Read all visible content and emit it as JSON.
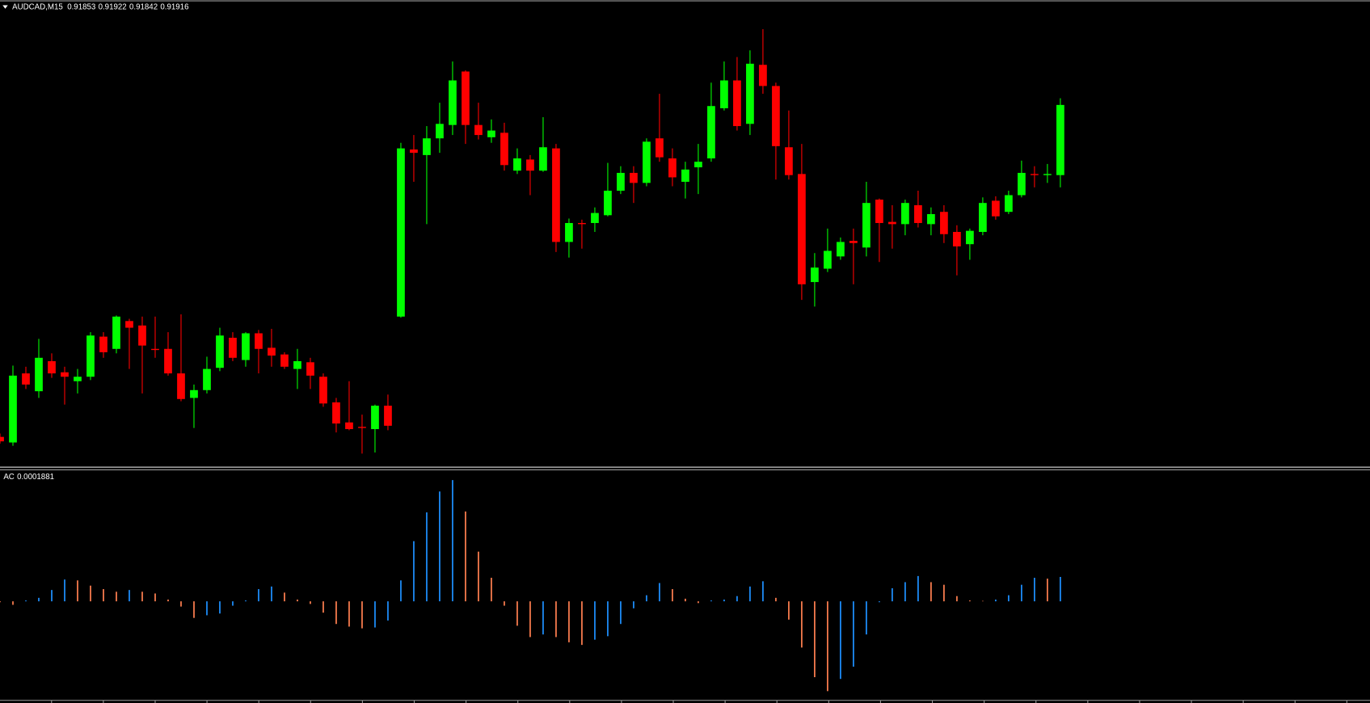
{
  "chart_data": [
    {
      "type": "candlestick",
      "title": "AUDCAD,M15",
      "color_up": "#00ff00",
      "color_down": "#ff0000",
      "ylim": [
        0.9159,
        0.92
      ],
      "open": [
        0.91618,
        0.91613,
        0.91675,
        0.91659,
        0.91686,
        0.91676,
        0.91668,
        0.91672,
        0.91708,
        0.91697,
        0.91722,
        0.91718,
        0.91697,
        0.91697,
        0.91675,
        0.91653,
        0.9166,
        0.9168,
        0.91707,
        0.91687,
        0.91711,
        0.91698,
        0.91692,
        0.91679,
        0.91685,
        0.91672,
        0.91649,
        0.91631,
        0.91627,
        0.91625,
        0.91646,
        0.91726,
        0.91876,
        0.91871,
        0.91886,
        0.91898,
        0.91946,
        0.91898,
        0.91887,
        0.91891,
        0.91857,
        0.91867,
        0.91857,
        0.91877,
        0.91793,
        0.9181,
        0.9181,
        0.91817,
        0.91839,
        0.91855,
        0.91846,
        0.91886,
        0.91868,
        0.91847,
        0.9186,
        0.91868,
        0.91913,
        0.91938,
        0.91899,
        0.91952,
        0.91933,
        0.91878,
        0.91854,
        0.91757,
        0.91769,
        0.9178,
        0.91794,
        0.91788,
        0.91831,
        0.91811,
        0.91809,
        0.91826,
        0.91809,
        0.9182,
        0.91802,
        0.91791,
        0.91802,
        0.9183,
        0.9182,
        0.91835,
        0.91854,
        0.91853,
        0.91853
      ],
      "high": [
        0.91621,
        0.91682,
        0.91681,
        0.91706,
        0.91693,
        0.91681,
        0.91679,
        0.91712,
        0.91712,
        0.91727,
        0.91724,
        0.91726,
        0.91726,
        0.91712,
        0.91728,
        0.91665,
        0.9169,
        0.91716,
        0.91712,
        0.91712,
        0.91714,
        0.91715,
        0.91694,
        0.91697,
        0.91689,
        0.91675,
        0.91653,
        0.91668,
        0.91638,
        0.91647,
        0.91656,
        0.91882,
        0.91889,
        0.91897,
        0.91918,
        0.91955,
        0.91947,
        0.91918,
        0.91903,
        0.919,
        0.91877,
        0.91871,
        0.91905,
        0.91881,
        0.91814,
        0.91813,
        0.91824,
        0.91864,
        0.91861,
        0.91861,
        0.91886,
        0.91926,
        0.91877,
        0.91865,
        0.91881,
        0.91936,
        0.91955,
        0.91959,
        0.91965,
        0.91984,
        0.91936,
        0.91911,
        0.91881,
        0.91783,
        0.91805,
        0.91797,
        0.91805,
        0.91847,
        0.91832,
        0.91826,
        0.91831,
        0.91839,
        0.91824,
        0.91826,
        0.91808,
        0.91805,
        0.91833,
        0.91834,
        0.91839,
        0.91866,
        0.91861,
        0.91863,
        0.91922
      ],
      "low": [
        0.91612,
        0.9161,
        0.91661,
        0.91653,
        0.91671,
        0.91647,
        0.91657,
        0.91669,
        0.91689,
        0.91693,
        0.91679,
        0.91657,
        0.91689,
        0.91673,
        0.9165,
        0.91626,
        0.91657,
        0.91677,
        0.91686,
        0.91681,
        0.91675,
        0.91681,
        0.91679,
        0.91661,
        0.91661,
        0.91645,
        0.91622,
        0.91624,
        0.91603,
        0.91604,
        0.91624,
        0.91725,
        0.91847,
        0.91809,
        0.91873,
        0.91889,
        0.91881,
        0.91885,
        0.91882,
        0.91857,
        0.91854,
        0.91835,
        0.91856,
        0.91784,
        0.91779,
        0.91787,
        0.91802,
        0.91816,
        0.91836,
        0.91828,
        0.91843,
        0.91865,
        0.91843,
        0.91832,
        0.91836,
        0.91865,
        0.91911,
        0.91893,
        0.91889,
        0.91926,
        0.91849,
        0.91849,
        0.91741,
        0.91735,
        0.91766,
        0.91777,
        0.91755,
        0.9178,
        0.91775,
        0.91787,
        0.91799,
        0.91806,
        0.91799,
        0.91792,
        0.91763,
        0.91777,
        0.91799,
        0.91813,
        0.91818,
        0.91833,
        0.91842,
        0.91846,
        0.91842
      ],
      "close": [
        0.91614,
        0.91673,
        0.91665,
        0.91689,
        0.91675,
        0.91672,
        0.91672,
        0.91709,
        0.91694,
        0.91726,
        0.91716,
        0.917,
        0.91696,
        0.91675,
        0.91652,
        0.9166,
        0.91679,
        0.91709,
        0.91689,
        0.91711,
        0.91697,
        0.91691,
        0.91681,
        0.91686,
        0.91673,
        0.91648,
        0.9163,
        0.91625,
        0.91626,
        0.91646,
        0.91628,
        0.91877,
        0.91873,
        0.91886,
        0.91899,
        0.91938,
        0.91898,
        0.91889,
        0.91893,
        0.91862,
        0.91868,
        0.91857,
        0.91878,
        0.91793,
        0.9181,
        0.91809,
        0.91819,
        0.91839,
        0.91855,
        0.91846,
        0.91883,
        0.91869,
        0.91851,
        0.91858,
        0.91865,
        0.91915,
        0.91938,
        0.91897,
        0.91953,
        0.91933,
        0.91879,
        0.91853,
        0.91755,
        0.9177,
        0.91785,
        0.91793,
        0.91792,
        0.91828,
        0.9181,
        0.91809,
        0.91828,
        0.9181,
        0.91818,
        0.918,
        0.91789,
        0.91803,
        0.91828,
        0.91816,
        0.91835,
        0.91855,
        0.91853,
        0.91854,
        0.91916
      ]
    },
    {
      "type": "bar",
      "name": "AC",
      "color_up": "#1e90ff",
      "color_down": "#ff7f50",
      "ylim": [
        -0.00075,
        0.001
      ],
      "values": [
        -6.7e-06,
        -2.69e-05,
        6.7e-06,
        2.69e-05,
        8.74e-05,
        0.000168,
        0.0001613,
        0.000121,
        9.41e-05,
        7.39e-05,
        8.74e-05,
        7.39e-05,
        6.05e-05,
        1.34e-05,
        -4.03e-05,
        -0.0001277,
        -0.0001075,
        -9.41e-05,
        -3.36e-05,
        6.7e-06,
        9.41e-05,
        0.0001142,
        6.72e-05,
        1.34e-05,
        -2.02e-05,
        -8.74e-05,
        -0.0001747,
        -0.0001949,
        -0.0002083,
        -0.0002016,
        -0.0001478,
        0.0001613,
        0.0004637,
        0.0006854,
        0.0008467,
        0.0009341,
        0.0006922,
        0.000383,
        0.0001814,
        -3.36e-05,
        -0.0001882,
        -0.0002755,
        -0.0002554,
        -0.0002755,
        -0.0003158,
        -0.000336,
        -0.0002957,
        -0.0002688,
        -0.0001747,
        -5.38e-05,
        4.7e-05,
        0.0001411,
        9.41e-05,
        2.02e-05,
        -1.34e-05,
        6.7e-06,
        1.34e-05,
        4.03e-05,
        0.0001142,
        0.0001546,
        2.69e-05,
        -0.0001411,
        -0.0003562,
        -0.0005846,
        -0.0006922,
        -0.0005981,
        -0.000504,
        -0.0002554,
        -6.7e-06,
        0.0001008,
        0.0001478,
        0.0001949,
        0.0001478,
        0.0001277,
        4.03e-05,
        6.7e-06,
        3.4e-06,
        1.34e-05,
        4.7e-05,
        0.0001277,
        0.0001814,
        0.0001747,
        0.0001881
      ]
    }
  ]
}
